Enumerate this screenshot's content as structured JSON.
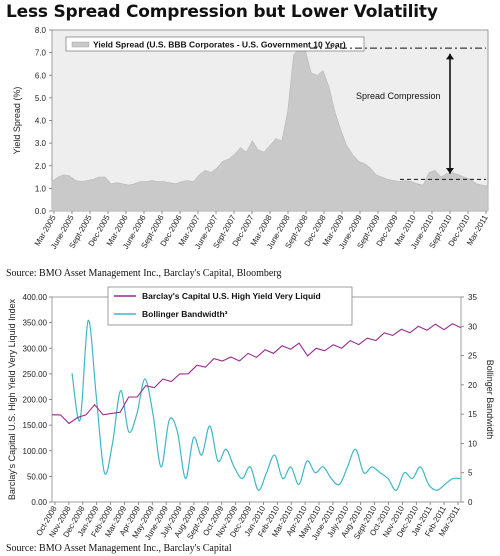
{
  "page": {
    "title": "Less Spread Compression but Lower Volatility",
    "source_top": "Source: BMO Asset Management Inc., Barclay's Capital, Bloomberg",
    "source_bottom": "Source: BMO Asset Management Inc., Barclay's Capital"
  },
  "colors": {
    "area": "#c9c9c9",
    "panel": "#eeeeee",
    "hy_line": "#9b2a8e",
    "bb_line": "#3fb7c6"
  },
  "chart_data": [
    {
      "type": "area",
      "title": "",
      "ylabel": "Yield Spread (%)",
      "ylim": [
        0,
        8
      ],
      "yticks": [
        "0.0",
        "1.0",
        "2.0",
        "3.0",
        "4.0",
        "5.0",
        "6.0",
        "7.0",
        "8.0"
      ],
      "xticks": [
        "Mar-2005",
        "June-2005",
        "Sept-2005",
        "Dec-2005",
        "Mar-2006",
        "June-2006",
        "Sept-2006",
        "Dec-2006",
        "Mar-2007",
        "June-2007",
        "Sept-2007",
        "Dec-2007",
        "Mar-2008",
        "June-2008",
        "Sept-2008",
        "Dec-2008",
        "Mar-2009",
        "June-2009",
        "Sept-2009",
        "Dec-2009",
        "Mar-2010",
        "June-2010",
        "Sept-2010",
        "Dec-2010",
        "Mar-2011"
      ],
      "series": [
        {
          "name": "Yield Spread (U.S. BBB Corporates - U.S. Government 10 Year)",
          "values": [
            1.3,
            1.5,
            1.6,
            1.55,
            1.35,
            1.3,
            1.35,
            1.4,
            1.5,
            1.5,
            1.2,
            1.25,
            1.2,
            1.15,
            1.2,
            1.3,
            1.3,
            1.35,
            1.3,
            1.3,
            1.25,
            1.2,
            1.3,
            1.35,
            1.3,
            1.6,
            1.8,
            1.7,
            1.9,
            2.2,
            2.3,
            2.5,
            2.8,
            2.6,
            3.1,
            2.7,
            2.6,
            2.9,
            3.2,
            3.1,
            4.4,
            6.9,
            7.2,
            7.1,
            6.1,
            6.0,
            6.2,
            5.5,
            4.4,
            3.6,
            2.9,
            2.5,
            2.2,
            2.1,
            1.9,
            1.6,
            1.5,
            1.4,
            1.35,
            1.3,
            1.35,
            1.3,
            1.2,
            1.15,
            1.7,
            1.8,
            1.5,
            1.65,
            1.7,
            1.6,
            1.5,
            1.4,
            1.2,
            1.15,
            1.1
          ]
        }
      ],
      "annotations": [
        {
          "text": "Spread Compression",
          "from": 7.2,
          "to": 1.4
        }
      ]
    },
    {
      "type": "line",
      "title": "",
      "ylabel": "Barclay's Capital U.S. High Yield Very Liquid Index",
      "y2label": "Bollinger Bandwidth",
      "ylim": [
        0,
        400
      ],
      "y2lim": [
        0,
        35
      ],
      "yticks": [
        "0.00",
        "50.00",
        "100.00",
        "150.00",
        "200.00",
        "250.00",
        "300.00",
        "350.00",
        "400.00"
      ],
      "y2ticks": [
        "0",
        "5",
        "10",
        "15",
        "20",
        "25",
        "30",
        "35"
      ],
      "xticks": [
        "Oct-2008",
        "Nov-2008",
        "Dec-2008",
        "Jan-2009",
        "Feb-2009",
        "Mar-2009",
        "Apr-2009",
        "May-2009",
        "June-2009",
        "July-2009",
        "Aug-2009",
        "Sept-2009",
        "Oct-2009",
        "Nov-2009",
        "Dec-2009",
        "Jan-2010",
        "Feb-2010",
        "Mar-2010",
        "Apr-2010",
        "May-2010",
        "June-2010",
        "July-2010",
        "Aug-2010",
        "Sept-2010",
        "Oct-2010",
        "Nov-2010",
        "Dec-2010",
        "Jan-2011",
        "Feb-2011",
        "Mar-2011"
      ],
      "series": [
        {
          "name": "Barclay's Capital U.S. High Yield Very Liquid",
          "axis": "left",
          "values": [
            175,
            165,
            158,
            160,
            175,
            185,
            175,
            168,
            180,
            200,
            210,
            222,
            228,
            235,
            240,
            245,
            255,
            262,
            268,
            275,
            280,
            278,
            280,
            285,
            287,
            292,
            295,
            300,
            303,
            305,
            290,
            295,
            300,
            302,
            305,
            310,
            312,
            315,
            320,
            325,
            330,
            332,
            335,
            338,
            340,
            342,
            341,
            343,
            345
          ]
        },
        {
          "name": "Bollinger Bandwidth³",
          "axis": "right",
          "values": [
            22,
            14,
            31,
            18,
            5,
            10,
            19,
            12,
            15,
            21,
            15,
            6,
            14,
            12,
            4,
            11,
            8,
            13,
            7,
            9,
            6,
            4,
            6,
            2,
            5,
            8,
            4,
            6,
            3,
            7,
            5,
            6,
            4,
            3,
            6,
            9,
            5,
            6,
            5,
            4,
            2,
            5,
            4,
            6,
            3,
            2,
            3,
            4,
            4
          ]
        }
      ]
    }
  ]
}
